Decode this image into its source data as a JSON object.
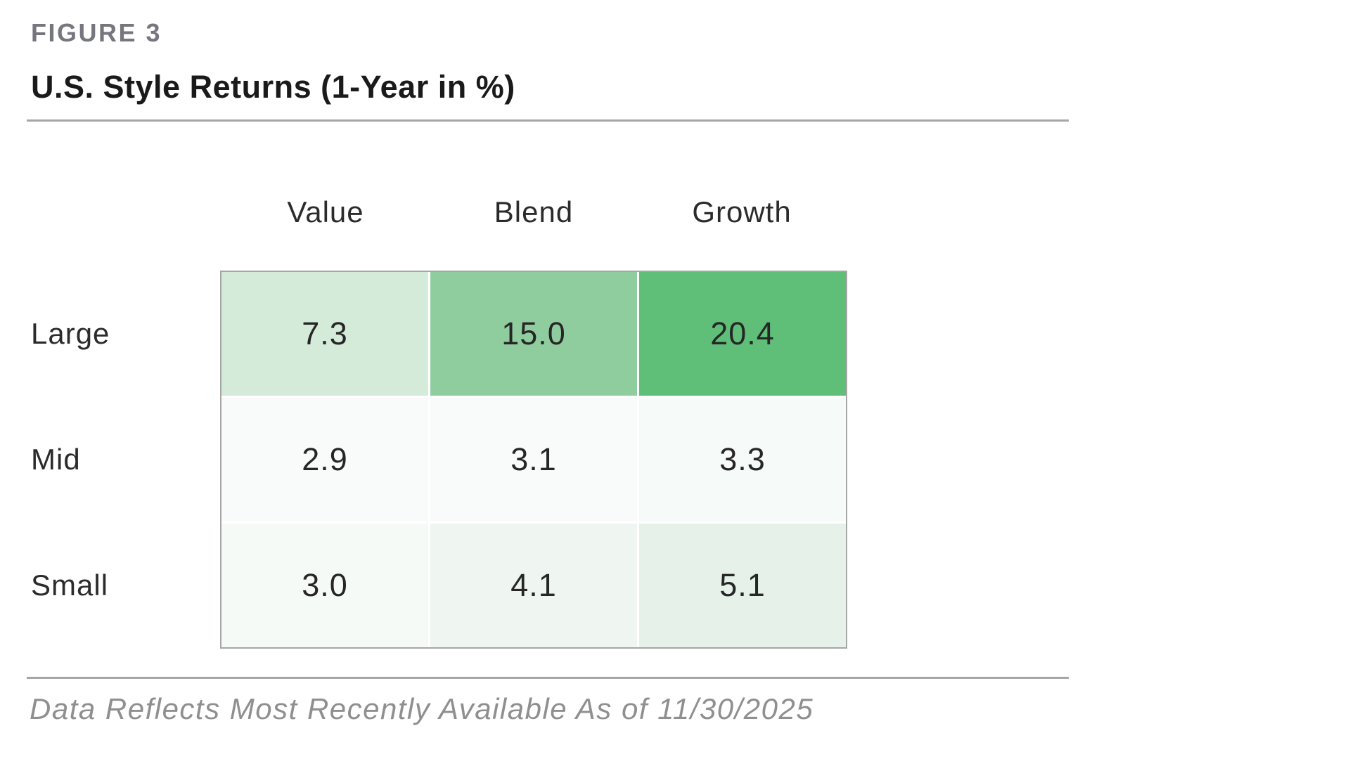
{
  "figure": {
    "label": "FIGURE 3",
    "title": "U.S. Style Returns (1-Year in %)",
    "footnote": "Data Reflects Most Recently Available As of 11/30/2025"
  },
  "chart_data": {
    "type": "heatmap",
    "title": "U.S. Style Returns (1-Year in %)",
    "columns": [
      "Value",
      "Blend",
      "Growth"
    ],
    "rows": [
      "Large",
      "Mid",
      "Small"
    ],
    "values": [
      [
        7.3,
        15.0,
        20.4
      ],
      [
        2.9,
        3.1,
        3.3
      ],
      [
        3.0,
        4.1,
        5.1
      ]
    ],
    "value_decimals": 1,
    "cell_colors": [
      [
        "#d5ebda",
        "#90cd9e",
        "#5fbe78"
      ],
      [
        "#f9fbfa",
        "#f8fbf9",
        "#f6faf8"
      ],
      [
        "#f6faf7",
        "#eff6f1",
        "#e5f1e9"
      ]
    ],
    "color_scale": {
      "min_color": "#fafcfb",
      "max_color": "#5fbe78"
    },
    "style": {
      "table_border_color": "#a6a6a6",
      "grid_gap_color": "#ffffff",
      "rule_color": "#a6a6a6",
      "figure_label_color": "#76767e",
      "footnote_color": "#8f8f8f",
      "cell_text_color": "#262626"
    },
    "legend": "none",
    "grid": "white gaps between cells, gray outer border"
  }
}
